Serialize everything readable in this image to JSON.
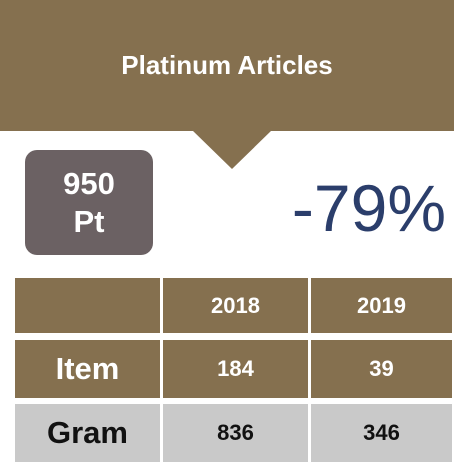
{
  "title": "Platinum Articles",
  "badge": {
    "amount": "950",
    "unit": "Pt"
  },
  "change": "-79%",
  "table": {
    "columns": [
      "2018",
      "2019"
    ],
    "rows": [
      {
        "label": "Item",
        "values": [
          184,
          39
        ]
      },
      {
        "label": "Gram",
        "values": [
          836,
          346
        ]
      }
    ]
  }
}
